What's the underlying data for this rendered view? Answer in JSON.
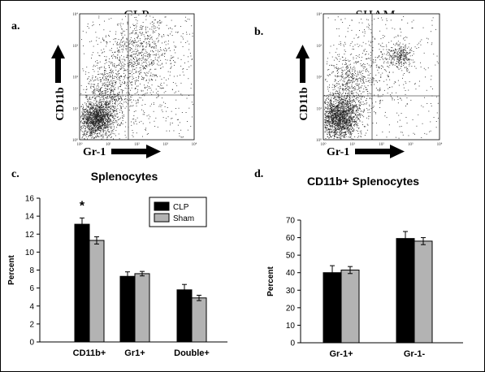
{
  "panels": {
    "a": {
      "letter": "a.",
      "title": "CLP",
      "ylabel": "CD11b",
      "xlabel": "Gr-1",
      "ticks": [
        "10⁰",
        "10¹",
        "10²",
        "10³",
        "10⁴"
      ]
    },
    "b": {
      "letter": "b.",
      "title": "SHAM",
      "ylabel": "CD11b",
      "xlabel": "Gr-1",
      "ticks": [
        "10⁰",
        "10¹",
        "10²",
        "10³",
        "10⁴"
      ]
    },
    "c": {
      "letter": "c."
    },
    "d": {
      "letter": "d."
    }
  },
  "colors": {
    "clp": "#000000",
    "sham": "#b3b3b3",
    "dots": "#222222"
  },
  "chart_data": [
    {
      "id": "c",
      "type": "bar",
      "title": "Splenocytes",
      "ylabel": "Percent",
      "xlabel": "",
      "categories": [
        "CD11b+",
        "Gr1+",
        "Double+"
      ],
      "series": [
        {
          "name": "CLP",
          "values": [
            13.1,
            7.3,
            5.8
          ],
          "errors": [
            0.7,
            0.5,
            0.6
          ]
        },
        {
          "name": "Sham",
          "values": [
            11.3,
            7.6,
            4.9
          ],
          "errors": [
            0.4,
            0.25,
            0.3
          ]
        }
      ],
      "ylim": [
        0,
        16
      ],
      "yticks": [
        0,
        2,
        4,
        6,
        8,
        10,
        12,
        14,
        16
      ],
      "annotations": [
        {
          "text": "*",
          "category": "CD11b+"
        }
      ],
      "legend": "top-right",
      "grid": false
    },
    {
      "id": "d",
      "type": "bar",
      "title": "CD11b+ Splenocytes",
      "ylabel": "Percent",
      "xlabel": "",
      "categories": [
        "Gr-1+",
        "Gr-1-"
      ],
      "series": [
        {
          "name": "CLP",
          "values": [
            40,
            59.5
          ],
          "errors": [
            4,
            4
          ]
        },
        {
          "name": "Sham",
          "values": [
            41.5,
            58
          ],
          "errors": [
            2,
            2
          ]
        }
      ],
      "ylim": [
        0,
        70
      ],
      "yticks": [
        0,
        10,
        20,
        30,
        40,
        50,
        60,
        70
      ],
      "legend": "none",
      "grid": false
    }
  ]
}
